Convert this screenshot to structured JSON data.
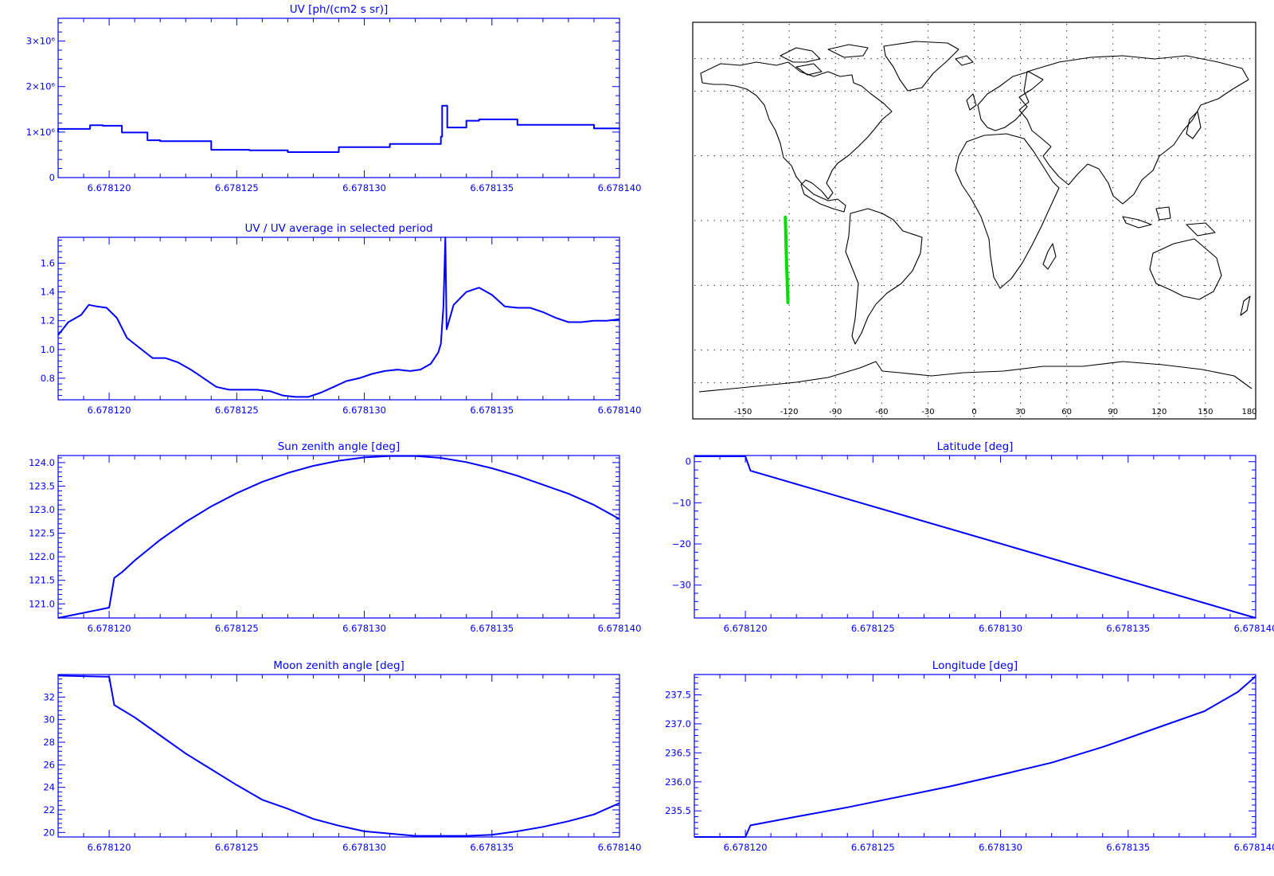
{
  "colors": {
    "axis": "#0000ff",
    "series": "#0000ff",
    "map_frame": "#000000",
    "track": "#00e000"
  },
  "chart_data": [
    {
      "id": "uv",
      "type": "line",
      "title": "UV [ph/(cm2 s sr)]",
      "xlim": [
        6.678118,
        6.67814
      ],
      "x_ticks": [
        6.67812,
        6.678125,
        6.67813,
        6.678135,
        6.67814
      ],
      "x_tick_labels": [
        "6.678120",
        "6.678125",
        "6.678130",
        "6.678135",
        "6.678140"
      ],
      "ylim": [
        0,
        3500000
      ],
      "y_ticks": [
        0,
        1000000,
        2000000,
        3000000
      ],
      "y_tick_labels": [
        "0",
        "1×10⁶",
        "2×10⁶",
        "3×10⁶"
      ],
      "step": true,
      "series": [
        {
          "x": [
            6.678118,
            6.678118,
            6.67811925,
            6.67811975,
            6.6781205,
            6.6781215,
            6.678122,
            6.678124,
            6.6781255,
            6.678127,
            6.6781275,
            6.678129,
            6.678131,
            6.67813225,
            6.678133,
            6.67813305,
            6.6781332,
            6.67813325,
            6.678134,
            6.6781345,
            6.678136,
            6.6781375,
            6.678139,
            6.67814
          ],
          "y": [
            1000000,
            1070000,
            1150000,
            1140000,
            990000,
            820000,
            800000,
            610000,
            600000,
            560000,
            560000,
            670000,
            740000,
            740000,
            900000,
            1580000,
            1580000,
            1100000,
            1250000,
            1280000,
            1160000,
            1160000,
            1080000,
            1090000
          ]
        }
      ]
    },
    {
      "id": "uv-ratio",
      "type": "line",
      "title": "UV / UV average in selected period",
      "xlim": [
        6.678118,
        6.67814
      ],
      "x_ticks": [
        6.67812,
        6.678125,
        6.67813,
        6.678135,
        6.67814
      ],
      "x_tick_labels": [
        "6.678120",
        "6.678125",
        "6.678130",
        "6.678135",
        "6.678140"
      ],
      "ylim": [
        0.65,
        1.78
      ],
      "y_ticks": [
        0.8,
        1.0,
        1.2,
        1.4,
        1.6
      ],
      "y_tick_labels": [
        "0.8",
        "1.0",
        "1.2",
        "1.4",
        "1.6"
      ],
      "series": [
        {
          "x": [
            6.678118,
            6.6781184,
            6.6781189,
            6.6781192,
            6.6781195,
            6.6781199,
            6.6781203,
            6.6781207,
            6.6781212,
            6.6781217,
            6.6781222,
            6.6781227,
            6.6781232,
            6.6781237,
            6.6781242,
            6.6781247,
            6.6781252,
            6.6781258,
            6.6781263,
            6.6781268,
            6.6781273,
            6.6781278,
            6.6781283,
            6.6781288,
            6.6781293,
            6.6781298,
            6.6781303,
            6.6781308,
            6.6781313,
            6.6781318,
            6.6781322,
            6.6781326,
            6.6781329,
            6.678133,
            6.6781331,
            6.678133175,
            6.678133225,
            6.6781335,
            6.678134,
            6.6781345,
            6.678135,
            6.6781355,
            6.678136,
            6.6781365,
            6.678137,
            6.6781375,
            6.678138,
            6.6781385,
            6.678139,
            6.6781395,
            6.67814
          ],
          "y": [
            1.1,
            1.19,
            1.24,
            1.31,
            1.3,
            1.29,
            1.22,
            1.08,
            1.01,
            0.94,
            0.94,
            0.91,
            0.86,
            0.8,
            0.74,
            0.72,
            0.72,
            0.72,
            0.71,
            0.68,
            0.67,
            0.67,
            0.7,
            0.74,
            0.78,
            0.8,
            0.83,
            0.85,
            0.86,
            0.85,
            0.86,
            0.9,
            0.98,
            1.04,
            1.3,
            1.78,
            1.14,
            1.31,
            1.4,
            1.43,
            1.38,
            1.3,
            1.29,
            1.29,
            1.26,
            1.22,
            1.19,
            1.19,
            1.2,
            1.2,
            1.21
          ]
        }
      ]
    },
    {
      "id": "sun-zenith",
      "type": "line",
      "title": "Sun zenith angle [deg]",
      "xlim": [
        6.678118,
        6.67814
      ],
      "x_ticks": [
        6.67812,
        6.678125,
        6.67813,
        6.678135,
        6.67814
      ],
      "x_tick_labels": [
        "6.678120",
        "6.678125",
        "6.678130",
        "6.678135",
        "6.678140"
      ],
      "ylim": [
        120.7,
        124.15
      ],
      "y_ticks": [
        121.0,
        121.5,
        122.0,
        122.5,
        123.0,
        123.5,
        124.0
      ],
      "y_tick_labels": [
        "121.0",
        "121.5",
        "122.0",
        "122.5",
        "123.0",
        "123.5",
        "124.0"
      ],
      "series": [
        {
          "x": [
            6.678118,
            6.67812,
            6.6781202,
            6.6781205,
            6.678121,
            6.678122,
            6.678123,
            6.678124,
            6.678125,
            6.678126,
            6.678127,
            6.678128,
            6.678129,
            6.67813,
            6.678131,
            6.678132,
            6.678133,
            6.678134,
            6.678135,
            6.678136,
            6.678137,
            6.678138,
            6.678139,
            6.67814
          ],
          "y": [
            120.7,
            120.92,
            121.55,
            121.67,
            121.92,
            122.36,
            122.74,
            123.07,
            123.35,
            123.59,
            123.78,
            123.93,
            124.04,
            124.11,
            124.14,
            124.14,
            124.1,
            124.01,
            123.88,
            123.72,
            123.53,
            123.34,
            123.1,
            122.8
          ]
        }
      ]
    },
    {
      "id": "latitude",
      "type": "line",
      "title": "Latitude [deg]",
      "xlim": [
        6.678118,
        6.67814
      ],
      "x_ticks": [
        6.67812,
        6.678125,
        6.67813,
        6.678135,
        6.67814
      ],
      "x_tick_labels": [
        "6.678120",
        "6.678125",
        "6.678130",
        "6.678135",
        "6.678140"
      ],
      "ylim": [
        -38,
        1.5
      ],
      "y_ticks": [
        0,
        -10,
        -20,
        -30
      ],
      "y_tick_labels": [
        "0",
        "−10",
        "−20",
        "−30"
      ],
      "series": [
        {
          "x": [
            6.678118,
            6.67812,
            6.6781202,
            6.67814
          ],
          "y": [
            1.3,
            1.3,
            -2.2,
            -38
          ]
        }
      ]
    },
    {
      "id": "moon-zenith",
      "type": "line",
      "title": "Moon zenith angle [deg]",
      "xlim": [
        6.678118,
        6.67814
      ],
      "x_ticks": [
        6.67812,
        6.678125,
        6.67813,
        6.678135,
        6.67814
      ],
      "x_tick_labels": [
        "6.678120",
        "6.678125",
        "6.678130",
        "6.678135",
        "6.678140"
      ],
      "ylim": [
        19.6,
        34.0
      ],
      "y_ticks": [
        20,
        22,
        24,
        26,
        28,
        30,
        32
      ],
      "y_tick_labels": [
        "20",
        "22",
        "24",
        "26",
        "28",
        "30",
        "32"
      ],
      "series": [
        {
          "x": [
            6.678118,
            6.67812,
            6.6781202,
            6.678121,
            6.678122,
            6.678123,
            6.678124,
            6.678125,
            6.678126,
            6.678127,
            6.678128,
            6.678129,
            6.67813,
            6.678131,
            6.678132,
            6.678133,
            6.678134,
            6.678135,
            6.678136,
            6.678137,
            6.678138,
            6.678139,
            6.67814
          ],
          "y": [
            33.9,
            33.8,
            31.3,
            30.2,
            28.6,
            27.0,
            25.6,
            24.2,
            22.9,
            22.1,
            21.2,
            20.6,
            20.1,
            19.9,
            19.7,
            19.7,
            19.7,
            19.8,
            20.1,
            20.5,
            21.0,
            21.6,
            22.6
          ]
        }
      ]
    },
    {
      "id": "longitude",
      "type": "line",
      "title": "Longitude [deg]",
      "xlim": [
        6.678118,
        6.67814
      ],
      "x_ticks": [
        6.67812,
        6.678125,
        6.67813,
        6.678135,
        6.67814
      ],
      "x_tick_labels": [
        "6.678120",
        "6.678125",
        "6.678130",
        "6.678135",
        "6.678140"
      ],
      "ylim": [
        235.05,
        237.85
      ],
      "y_ticks": [
        235.5,
        236.0,
        236.5,
        237.0,
        237.5
      ],
      "y_tick_labels": [
        "235.5",
        "236.0",
        "236.5",
        "237.0",
        "237.5"
      ],
      "series": [
        {
          "x": [
            6.678118,
            6.67812,
            6.6781202,
            6.678122,
            6.678124,
            6.678126,
            6.678128,
            6.67813,
            6.678132,
            6.678134,
            6.678136,
            6.678138,
            6.6781393,
            6.67814
          ],
          "y": [
            235.05,
            235.05,
            235.25,
            235.4,
            235.56,
            235.74,
            235.92,
            236.12,
            236.33,
            236.6,
            236.91,
            237.22,
            237.55,
            237.82
          ]
        }
      ]
    }
  ],
  "map": {
    "title": "",
    "lon_ticks": [
      -150,
      -120,
      -90,
      -60,
      -30,
      0,
      30,
      60,
      90,
      120,
      150,
      180
    ],
    "lon_tick_labels": [
      "-150",
      "-120",
      "-90",
      "-60",
      "-30",
      "0",
      "30",
      "60",
      "90",
      "120",
      "150",
      "180"
    ],
    "lon_range": [
      -180,
      180
    ],
    "lat_range": [
      -90,
      90
    ],
    "lat_grid": [
      -60,
      -30,
      0,
      30,
      60
    ],
    "grid": true,
    "track": {
      "lon": [
        -122.5,
        -121.8,
        -120.8
      ],
      "lat": [
        1.5,
        -18,
        -38
      ]
    }
  }
}
